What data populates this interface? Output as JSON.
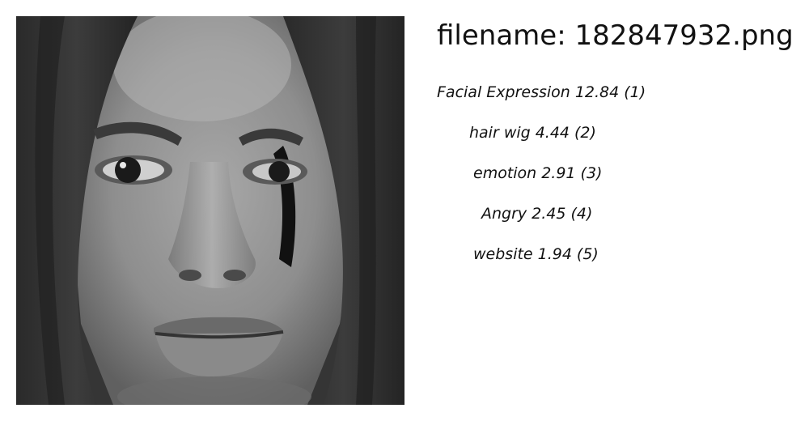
{
  "filename_prefix": "filename: ",
  "filename": "182847932.png",
  "labels": [
    {
      "name": "Facial Expression",
      "score": "12.84",
      "rank": "(1)"
    },
    {
      "name": "hair wig",
      "score": "4.44",
      "rank": "(2)"
    },
    {
      "name": "emotion",
      "score": "2.91",
      "rank": "(3)"
    },
    {
      "name": "Angry",
      "score": "2.45",
      "rank": "(4)"
    },
    {
      "name": "website",
      "score": "1.94",
      "rank": "(5)"
    }
  ]
}
